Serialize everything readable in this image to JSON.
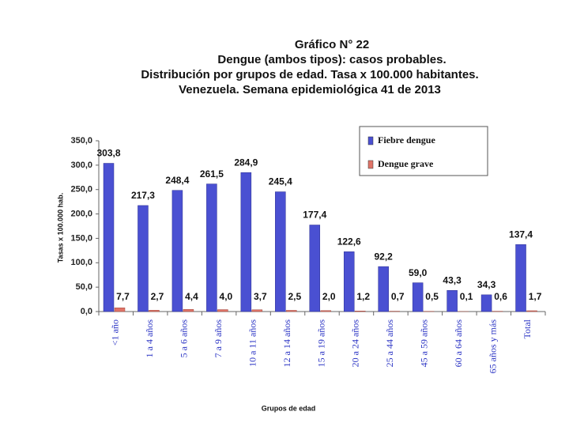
{
  "chart_data": {
    "type": "bar",
    "title": [
      "Gráfico  N° 22",
      "Dengue (ambos tipos): casos probables.",
      "Distribución por grupos  de edad. Tasa x 100.000 habitantes.",
      "Venezuela. Semana epidemiológica 41 de 2013"
    ],
    "y_label": "Tasas x 100.000 hab.",
    "x_label": "Grupos de edad",
    "categories": [
      "<1 año",
      "1 a 4 años",
      "5 a 6 años",
      "7 a 9 años",
      "10 a 11 años",
      "12 a 14 años",
      "15 a 19 años",
      "20 a 24 años",
      "25 a 44 años",
      "45 a 59 años",
      "60 a 64 años",
      "65 años y más",
      "Total"
    ],
    "series": [
      {
        "name": "Fiebre dengue",
        "color": "#4a50d2",
        "values": [
          303.8,
          217.3,
          248.4,
          261.5,
          284.9,
          245.4,
          177.4,
          122.6,
          92.2,
          59.0,
          43.3,
          34.3,
          137.4
        ],
        "value_labels": [
          "303,8",
          "217,3",
          "248,4",
          "261,5",
          "284,9",
          "245,4",
          "177,4",
          "122,6",
          "92,2",
          "59,0",
          "43,3",
          "34,3",
          "137,4"
        ]
      },
      {
        "name": "Dengue grave",
        "color": "#e07468",
        "values": [
          7.7,
          2.7,
          4.4,
          4.0,
          3.7,
          2.5,
          2.0,
          1.2,
          0.7,
          0.5,
          0.1,
          0.6,
          1.7
        ],
        "value_labels": [
          "7,7",
          "2,7",
          "4,4",
          "4,0",
          "3,7",
          "2,5",
          "2,0",
          "1,2",
          "0,7",
          "0,5",
          "0,1",
          "0,6",
          "1,7"
        ]
      }
    ],
    "ylim": [
      0,
      350
    ],
    "yticks": [
      {
        "value": 0,
        "label": "0,0"
      },
      {
        "value": 50,
        "label": "50,0"
      },
      {
        "value": 100,
        "label": "100,0"
      },
      {
        "value": 150,
        "label": "150,0"
      },
      {
        "value": 200,
        "label": "200,0"
      },
      {
        "value": 250,
        "label": "250,0"
      },
      {
        "value": 300,
        "label": "300,0"
      },
      {
        "value": 350,
        "label": "350,0"
      }
    ],
    "grid": false,
    "legend": "upper right"
  }
}
